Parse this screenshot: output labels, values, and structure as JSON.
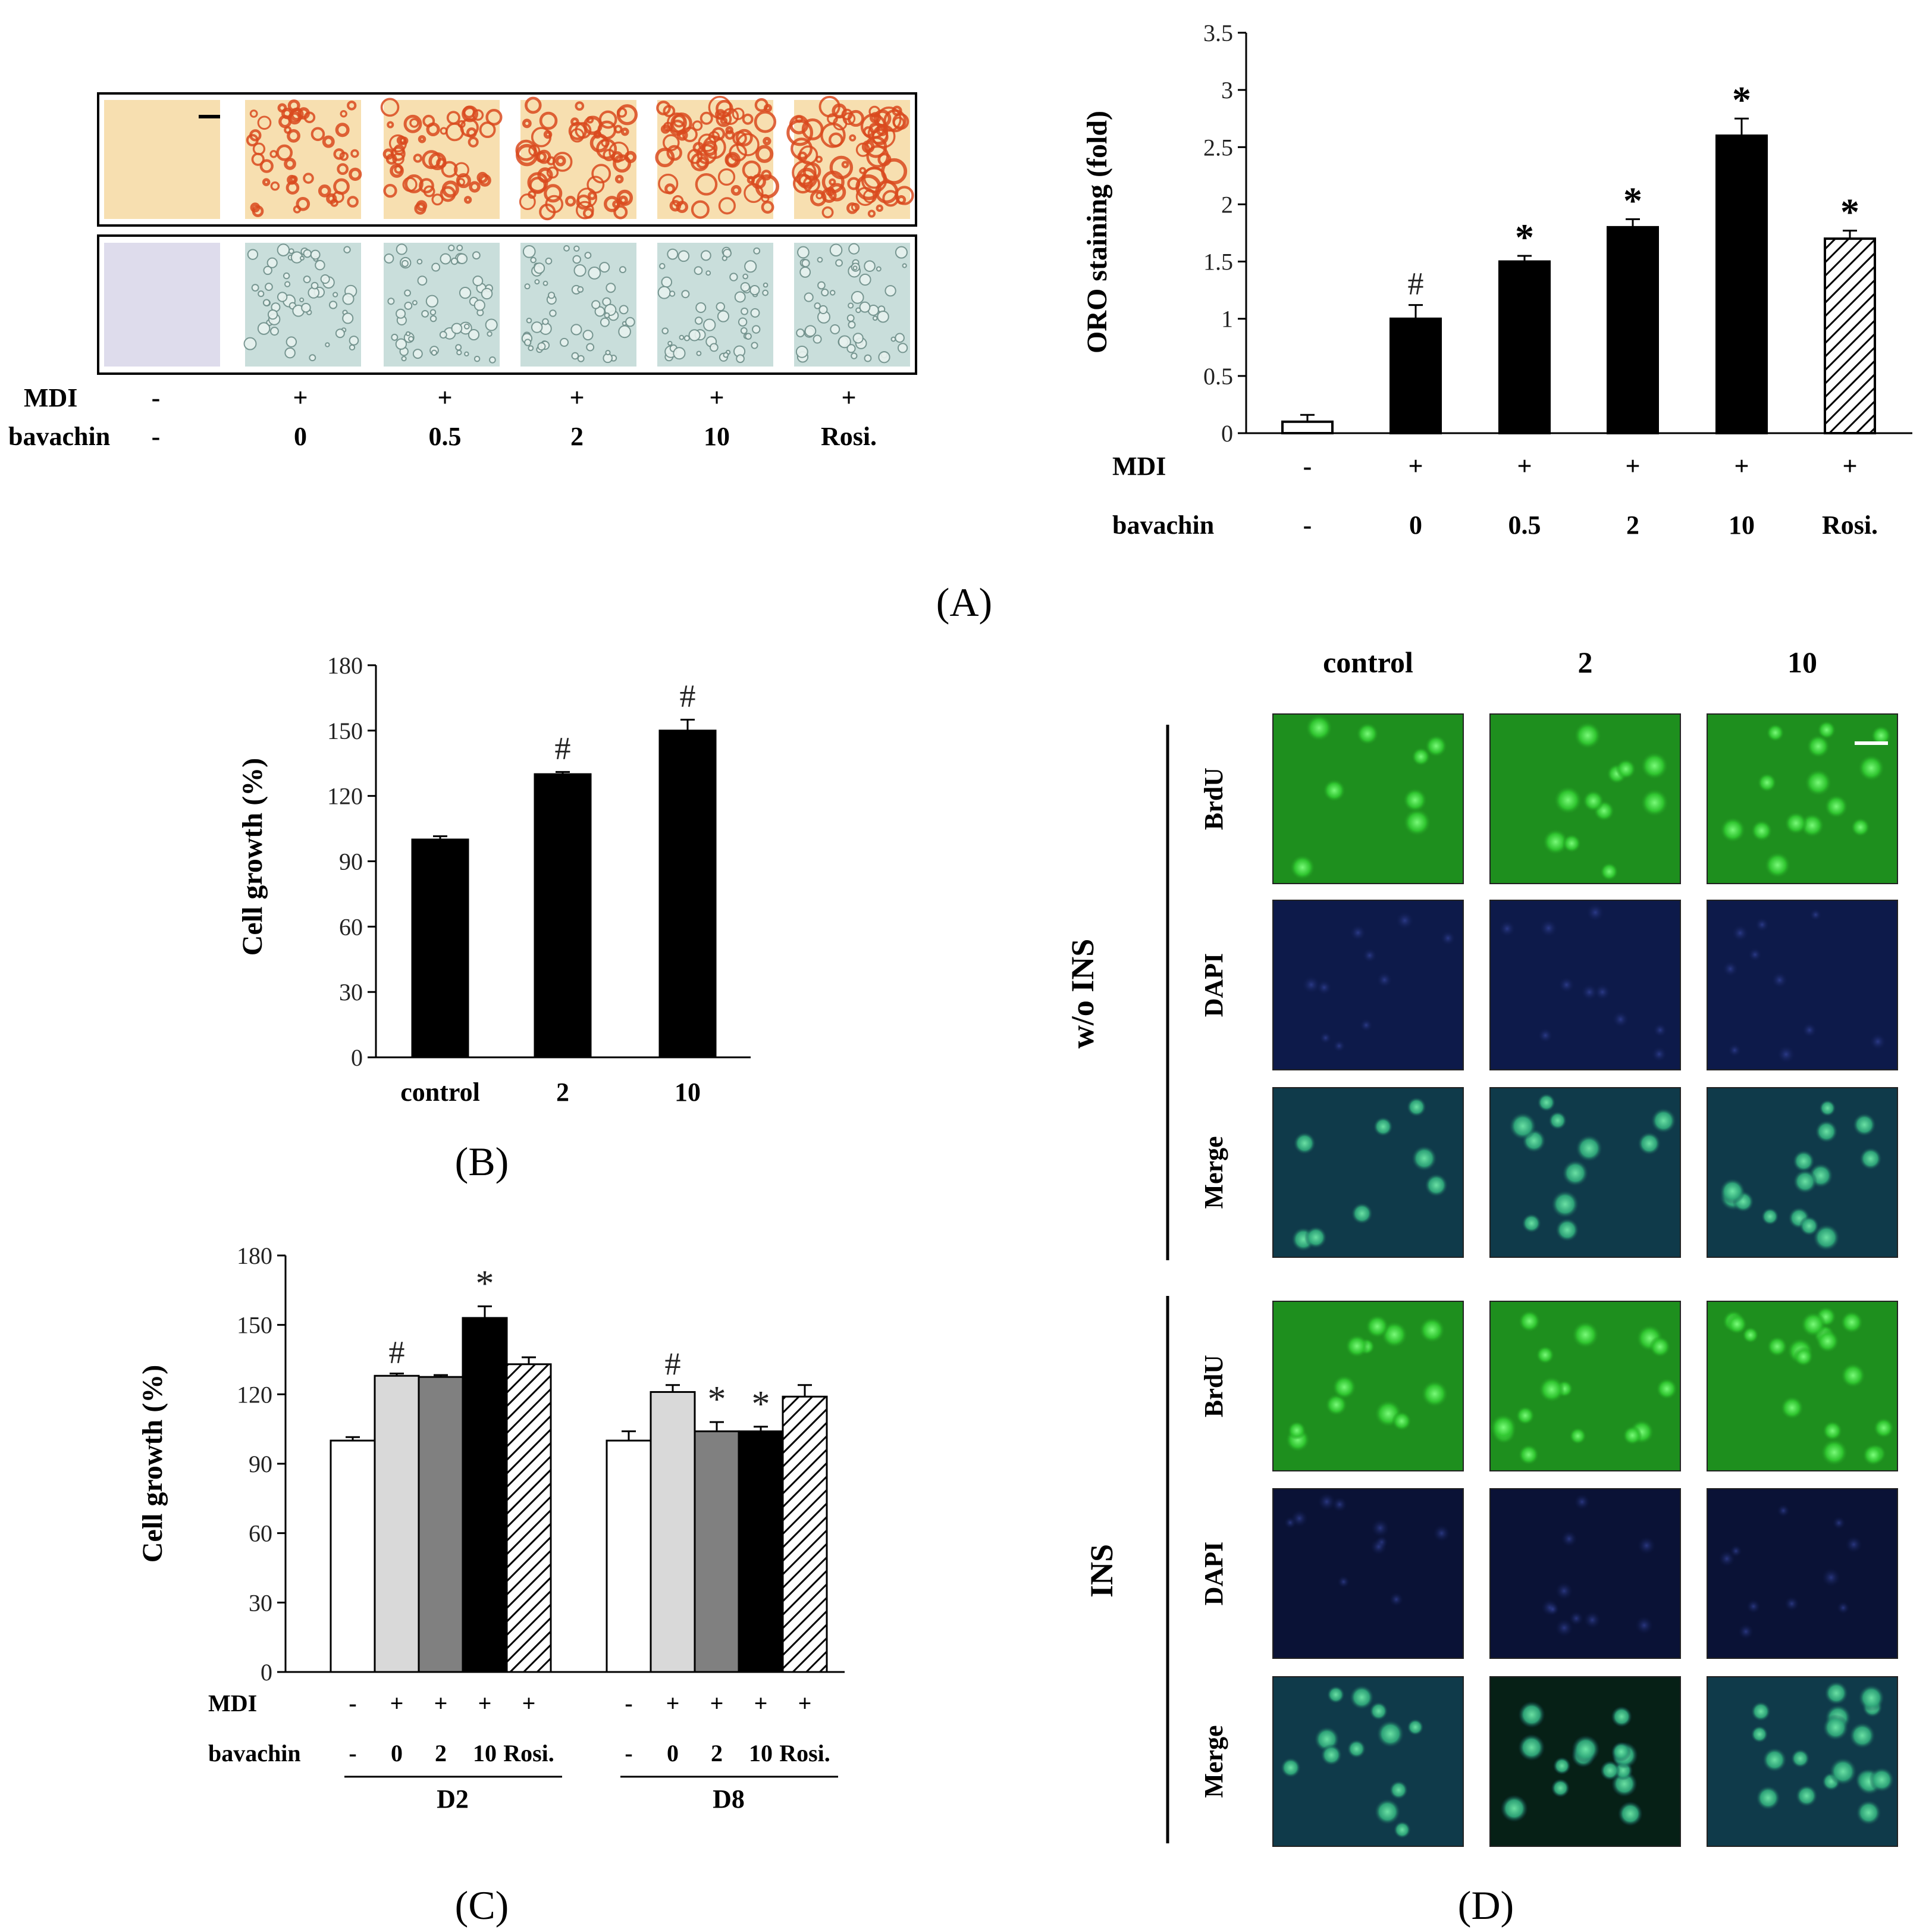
{
  "panels": {
    "A": "(A)",
    "B": "(B)",
    "C": "(C)",
    "D": "(D)"
  },
  "micrograph_strip": {
    "row_labels": {
      "mdi": "MDI",
      "bavachin": "bavachin"
    },
    "mdi": [
      "-",
      "+",
      "+",
      "+",
      "+",
      "+"
    ],
    "bavachin": [
      "-",
      "0",
      "0.5",
      "2",
      "10",
      "Rosi."
    ],
    "colors": {
      "oro_background": "#f7dfb0",
      "oro_stain": "#d94a1f",
      "phase_background": "#c9dedb"
    }
  },
  "fluorescence": {
    "column_headers": [
      "control",
      "2",
      "10"
    ],
    "group_labels": [
      "w/o INS",
      "INS"
    ],
    "row_labels": [
      "BrdU",
      "DAPI",
      "Merge"
    ],
    "colors": {
      "brdu": "#1e8f1e",
      "dapi": "#0d1a4a",
      "merge": "#0f3a4a"
    }
  },
  "chart_data": [
    {
      "id": "A",
      "type": "bar",
      "ylabel": "ORO staining (fold)",
      "ylim": [
        0,
        3.5
      ],
      "yticks": [
        "0",
        "0.5",
        "1",
        "1.5",
        "2",
        "2.5",
        "3",
        "3.5"
      ],
      "row_labels": {
        "mdi": "MDI",
        "bavachin": "bavachin"
      },
      "mdi": [
        "-",
        "+",
        "+",
        "+",
        "+",
        "+"
      ],
      "bavachin": [
        "-",
        "0",
        "0.5",
        "2",
        "10",
        "Rosi."
      ],
      "values": [
        0.1,
        1.0,
        1.5,
        1.8,
        2.6,
        1.7
      ],
      "errors": [
        0.06,
        0.12,
        0.05,
        0.07,
        0.15,
        0.07
      ],
      "annotations": [
        "",
        "#",
        "*",
        "*",
        "*",
        "*"
      ],
      "fills": [
        "white",
        "black",
        "black",
        "black",
        "black",
        "hatch"
      ],
      "grid": false
    },
    {
      "id": "B",
      "type": "bar",
      "ylabel": "Cell growth (%)",
      "ylim": [
        0,
        180
      ],
      "yticks": [
        "0",
        "30",
        "60",
        "90",
        "120",
        "150",
        "180"
      ],
      "categories": [
        "control",
        "2",
        "10"
      ],
      "values": [
        100,
        130,
        150
      ],
      "errors": [
        1.5,
        1,
        5
      ],
      "annotations": [
        "",
        "#",
        "#"
      ],
      "grid": false
    },
    {
      "id": "C",
      "type": "bar",
      "ylabel": "Cell growth (%)",
      "ylim": [
        0,
        180
      ],
      "yticks": [
        "0",
        "30",
        "60",
        "90",
        "120",
        "150",
        "180"
      ],
      "row_labels": {
        "mdi": "MDI",
        "bavachin": "bavachin"
      },
      "groups": [
        {
          "name": "D2",
          "mdi": [
            "-",
            "+",
            "+",
            "+",
            "+"
          ],
          "bavachin": [
            "-",
            "0",
            "2",
            "10",
            "Rosi."
          ],
          "values": [
            100,
            128,
            127.5,
            153,
            133
          ],
          "errors": [
            1.5,
            1,
            0.8,
            5,
            3
          ],
          "annotations": [
            "",
            "#",
            "",
            "*",
            ""
          ]
        },
        {
          "name": "D8",
          "mdi": [
            "-",
            "+",
            "+",
            "+",
            "+"
          ],
          "bavachin": [
            "-",
            "0",
            "2",
            "10",
            "Rosi."
          ],
          "values": [
            100,
            121,
            104,
            104,
            119
          ],
          "errors": [
            4,
            3,
            4,
            2,
            5
          ],
          "annotations": [
            "",
            "#",
            "*",
            "*",
            ""
          ]
        }
      ],
      "fills": [
        "#ffffff",
        "#d9d9d9",
        "#808080",
        "#000000",
        "hatch"
      ],
      "grid": false
    }
  ]
}
